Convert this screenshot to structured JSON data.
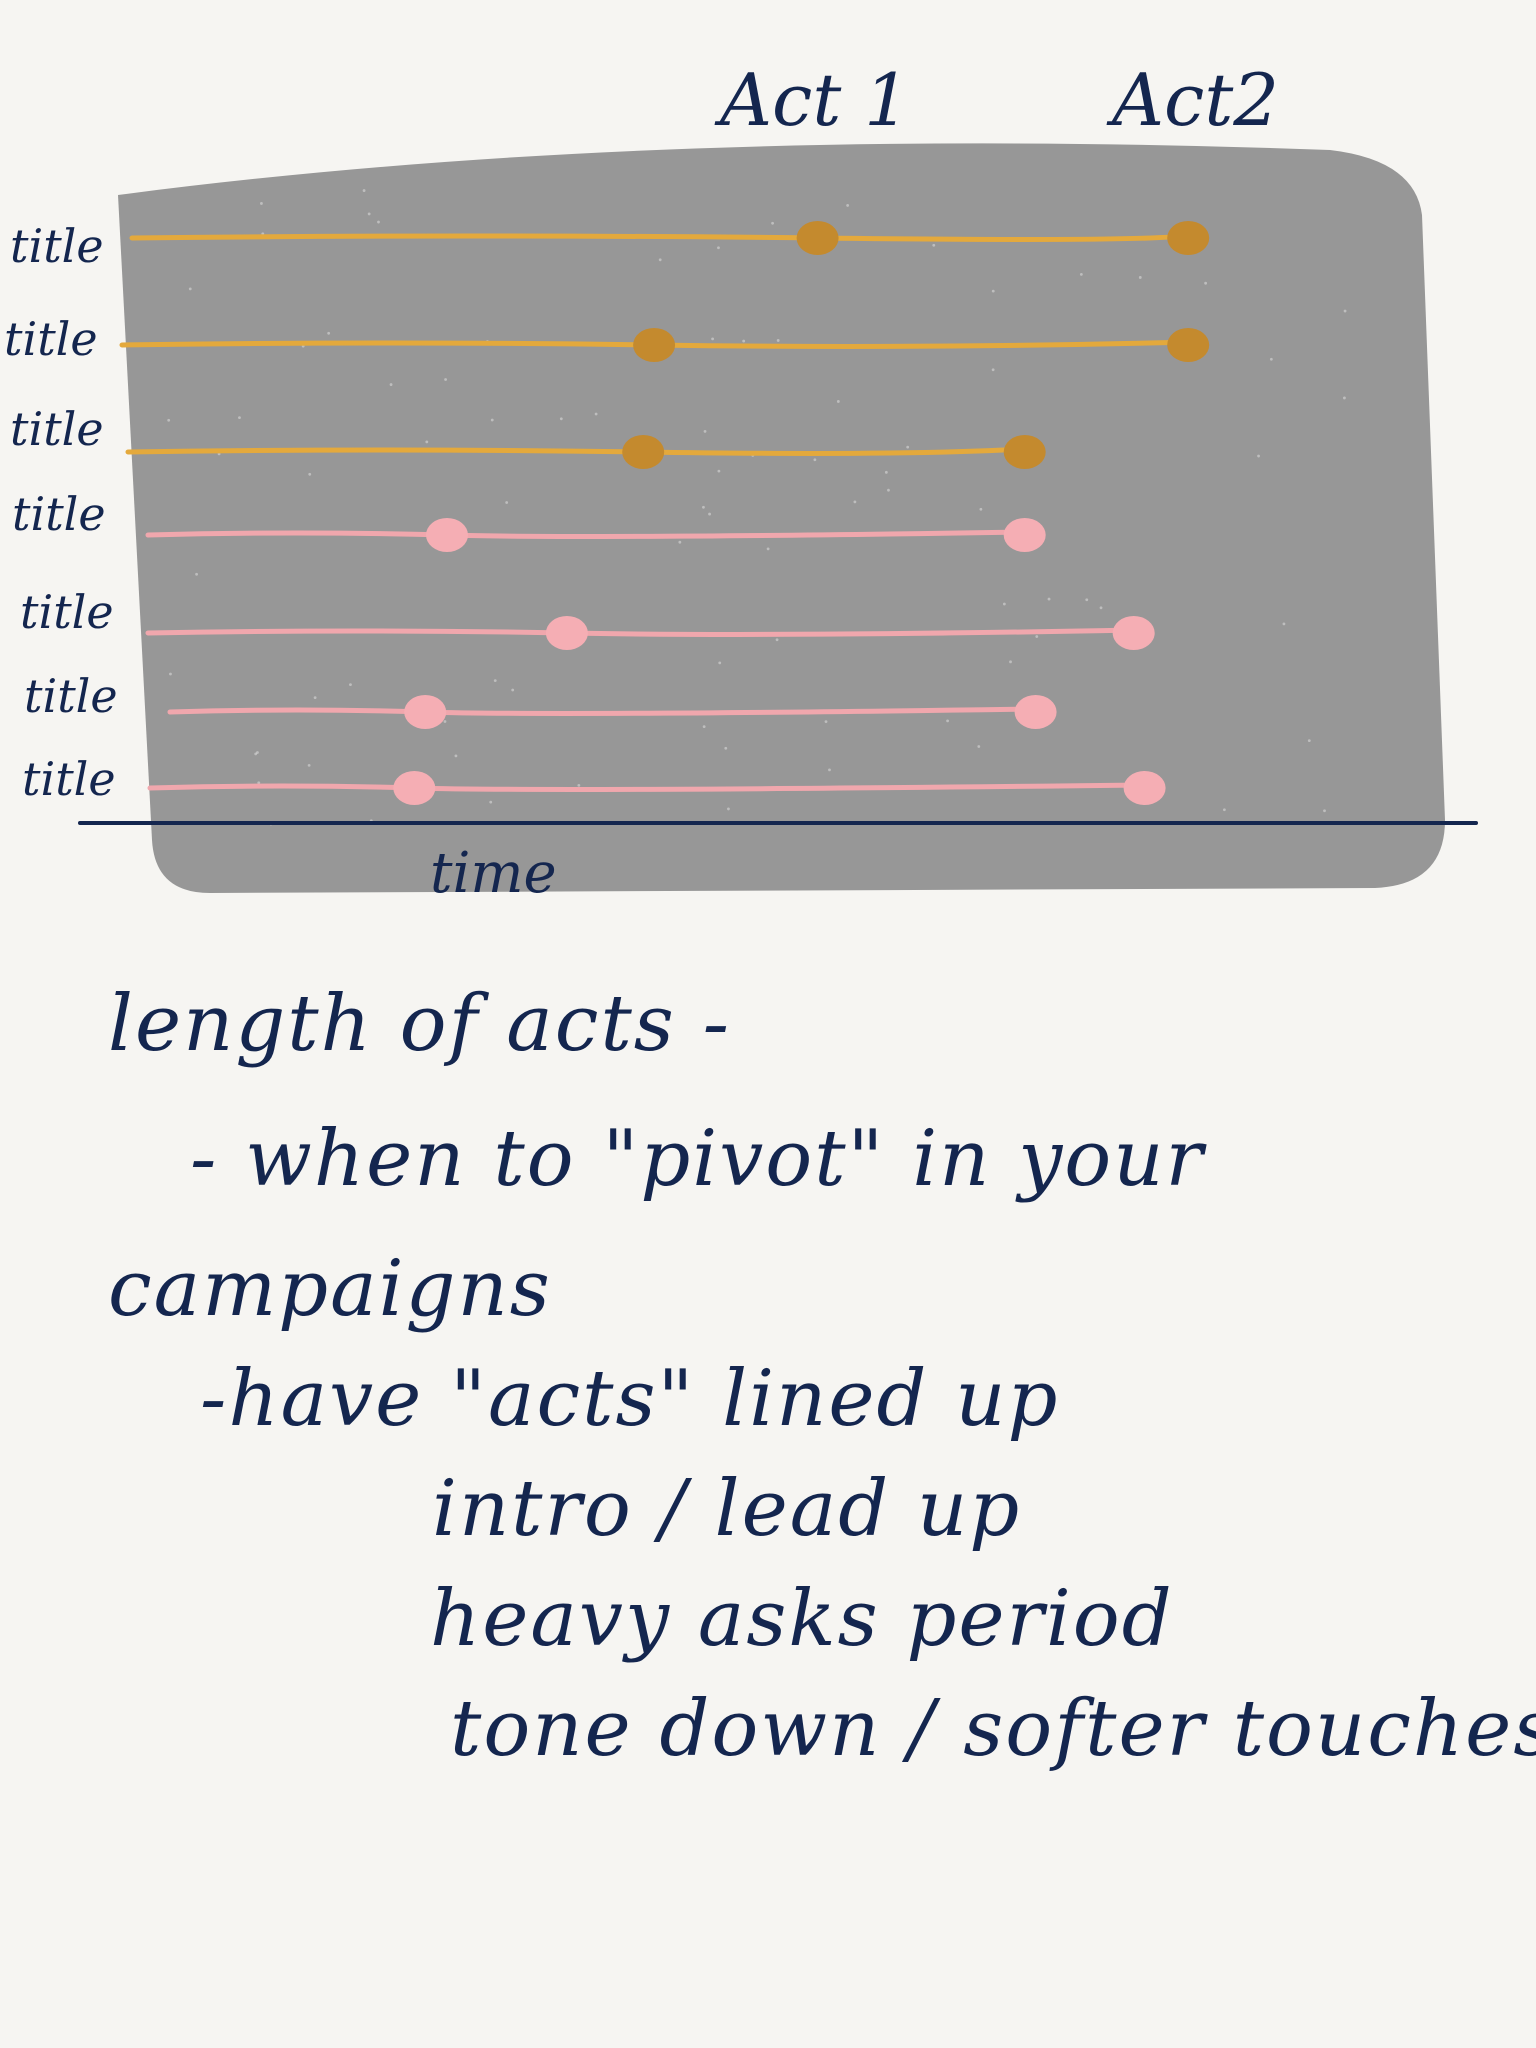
{
  "diagram": {
    "act_labels": [
      "Act 1",
      "Act2"
    ],
    "row_labels": [
      "title",
      "title",
      "title",
      "title",
      "title",
      "title",
      "title"
    ],
    "axis_label": "time",
    "colors": {
      "panel": "#979797",
      "gold_line": "#e4a93c",
      "gold_dot": "#c48a2e",
      "pink_line": "#f0a7ad",
      "pink_dot": "#f5aeb4",
      "ink": "#14264f"
    },
    "rows": [
      {
        "group": "gold",
        "pivot": 0.64,
        "end": 0.98
      },
      {
        "group": "gold",
        "pivot": 0.49,
        "end": 0.98
      },
      {
        "group": "gold",
        "pivot": 0.48,
        "end": 0.83
      },
      {
        "group": "pink",
        "pivot": 0.3,
        "end": 0.83
      },
      {
        "group": "pink",
        "pivot": 0.41,
        "end": 0.93
      },
      {
        "group": "pink",
        "pivot": 0.28,
        "end": 0.84
      },
      {
        "group": "pink",
        "pivot": 0.27,
        "end": 0.94
      }
    ]
  },
  "notes": [
    "length of acts -",
    "- when to \"pivot\" in your",
    "campaigns",
    "-have \"acts\" lined up",
    "intro / lead up",
    "heavy asks period",
    "tone down / softer touches"
  ]
}
